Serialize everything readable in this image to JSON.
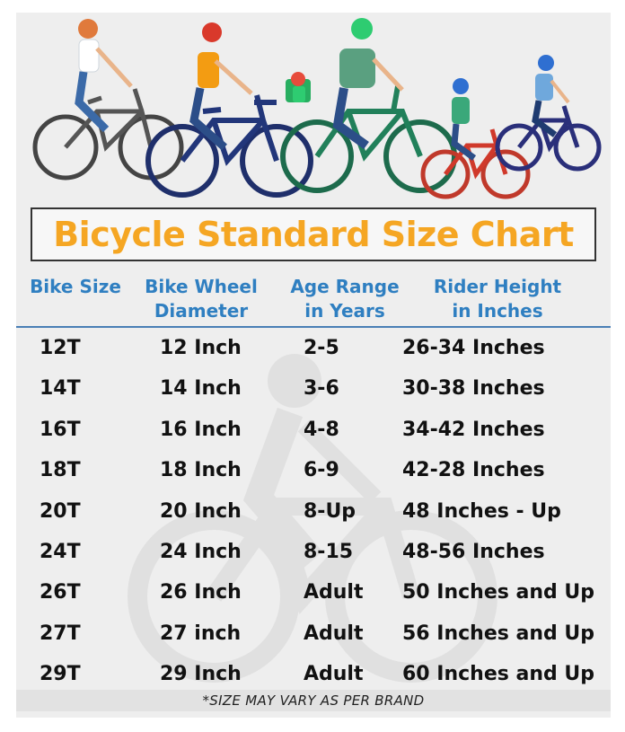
{
  "title": "Bicycle Standard Size Chart",
  "colors": {
    "title": "#f5a623",
    "header": "#2f7fc1",
    "rule": "#4a7fb5"
  },
  "headers": [
    {
      "line1": "Bike Size",
      "line2": ""
    },
    {
      "line1": "Bike Wheel",
      "line2": "Diameter"
    },
    {
      "line1": "Age Range",
      "line2": "in Years"
    },
    {
      "line1": "Rider Height",
      "line2": "in Inches"
    }
  ],
  "rows": [
    [
      "12T",
      "12 Inch",
      "2-5",
      "26-34 Inches"
    ],
    [
      "14T",
      "14 Inch",
      "3-6",
      "30-38 Inches"
    ],
    [
      "16T",
      "16 Inch",
      "4-8",
      "34-42 Inches"
    ],
    [
      "18T",
      "18 Inch",
      "6-9",
      "42-28 Inches"
    ],
    [
      "20T",
      "20 Inch",
      "8-Up",
      "48 Inches - Up"
    ],
    [
      "24T",
      "24 Inch",
      "8-15",
      "48-56 Inches"
    ],
    [
      "26T",
      "26 Inch",
      "Adult",
      "50 Inches and Up"
    ],
    [
      "27T",
      "27 inch",
      "Adult",
      "56 Inches and Up"
    ],
    [
      "29T",
      "29 Inch",
      "Adult",
      "60 Inches and Up"
    ]
  ],
  "footnote": "*SIZE MAY VARY AS PER BRAND"
}
